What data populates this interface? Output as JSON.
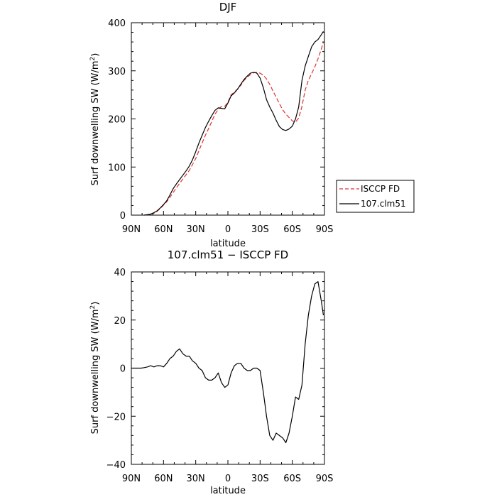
{
  "chart_data": [
    {
      "type": "line",
      "title": "DJF",
      "xlabel": "latitude",
      "ylabel": "Surf downwelling SW (W/m²)",
      "ylabel_parts": {
        "pre": "Surf downwelling SW (W/m",
        "sup": "2",
        "post": ")"
      },
      "xlim": [
        90,
        -90
      ],
      "ylim": [
        0,
        400
      ],
      "x_tick_values": [
        90,
        60,
        30,
        0,
        -30,
        -60,
        -90
      ],
      "x_tick_labels": [
        "90N",
        "60N",
        "30N",
        "0",
        "30S",
        "60S",
        "90S"
      ],
      "y_tick_values": [
        0,
        100,
        200,
        300,
        400
      ],
      "y_tick_labels": [
        "0",
        "100",
        "200",
        "300",
        "400"
      ],
      "legend_position": "outside-right",
      "series": [
        {
          "name": "ISCCP FD",
          "color": "#e03030",
          "dash": "dashed",
          "x": [
            78,
            75,
            72,
            69,
            66,
            63,
            60,
            57,
            54,
            51,
            48,
            45,
            42,
            39,
            36,
            33,
            30,
            27,
            24,
            21,
            18,
            15,
            12,
            9,
            6,
            3,
            0,
            -3,
            -6,
            -9,
            -12,
            -15,
            -18,
            -21,
            -24,
            -27,
            -30,
            -33,
            -36,
            -39,
            -42,
            -45,
            -48,
            -51,
            -54,
            -57,
            -60,
            -63,
            -66,
            -69,
            -72,
            -75,
            -78,
            -81,
            -84,
            -87,
            -89
          ],
          "y": [
            0,
            1,
            2,
            4,
            8,
            14,
            21,
            28,
            37,
            47,
            57,
            66,
            75,
            84,
            93,
            105,
            118,
            134,
            150,
            166,
            180,
            195,
            210,
            220,
            226,
            226,
            235,
            250,
            256,
            262,
            270,
            280,
            287,
            292,
            296,
            297,
            295,
            291,
            283,
            272,
            258,
            245,
            232,
            219,
            210,
            203,
            196,
            193,
            202,
            226,
            260,
            280,
            294,
            308,
            325,
            345,
            360
          ]
        },
        {
          "name": "107.clm51",
          "color": "#000000",
          "dash": "solid",
          "x": [
            78,
            75,
            72,
            69,
            66,
            63,
            60,
            57,
            54,
            51,
            48,
            45,
            42,
            39,
            36,
            33,
            30,
            27,
            24,
            21,
            18,
            15,
            12,
            9,
            6,
            3,
            0,
            -3,
            -6,
            -9,
            -12,
            -15,
            -18,
            -21,
            -24,
            -27,
            -30,
            -33,
            -36,
            -39,
            -42,
            -45,
            -48,
            -51,
            -54,
            -57,
            -60,
            -63,
            -66,
            -69,
            -72,
            -75,
            -78,
            -81,
            -84,
            -87,
            -89
          ],
          "y": [
            0,
            1,
            2,
            5,
            9,
            15,
            22,
            30,
            42,
            55,
            65,
            74,
            83,
            92,
            102,
            115,
            132,
            150,
            166,
            182,
            195,
            207,
            218,
            223,
            222,
            221,
            233,
            248,
            254,
            262,
            272,
            282,
            289,
            295,
            297,
            295,
            285,
            265,
            240,
            225,
            212,
            197,
            184,
            178,
            176,
            179,
            185,
            200,
            225,
            280,
            310,
            330,
            350,
            360,
            365,
            375,
            382
          ]
        }
      ]
    },
    {
      "type": "line",
      "title": "107.clm51 − ISCCP FD",
      "xlabel": "latitude",
      "ylabel": "Surf downwelling SW (W/m²)",
      "ylabel_parts": {
        "pre": "Surf downwelling SW (W/m",
        "sup": "2",
        "post": ")"
      },
      "xlim": [
        90,
        -90
      ],
      "ylim": [
        -40,
        40
      ],
      "x_tick_values": [
        90,
        60,
        30,
        0,
        -30,
        -60,
        -90
      ],
      "x_tick_labels": [
        "90N",
        "60N",
        "30N",
        "0",
        "30S",
        "60S",
        "90S"
      ],
      "y_tick_values": [
        -40,
        -20,
        0,
        20,
        40
      ],
      "y_tick_labels": [
        "−40",
        "−20",
        "0",
        "20",
        "40"
      ],
      "series": [
        {
          "name": "",
          "color": "#000000",
          "dash": "solid",
          "x": [
            90,
            87,
            84,
            81,
            78,
            75,
            72,
            69,
            66,
            63,
            60,
            57,
            54,
            51,
            48,
            45,
            42,
            39,
            36,
            33,
            30,
            27,
            24,
            21,
            18,
            15,
            12,
            9,
            6,
            3,
            0,
            -3,
            -6,
            -9,
            -12,
            -15,
            -18,
            -21,
            -24,
            -27,
            -30,
            -33,
            -36,
            -39,
            -42,
            -45,
            -48,
            -51,
            -54,
            -57,
            -60,
            -63,
            -66,
            -69,
            -72,
            -75,
            -78,
            -81,
            -84,
            -87,
            -89
          ],
          "y": [
            0,
            0,
            0,
            0,
            0.2,
            0.5,
            1,
            0.5,
            1,
            1,
            0.5,
            2,
            4,
            5,
            7,
            8,
            6,
            5,
            5,
            3,
            2,
            0,
            -1,
            -4,
            -5,
            -5,
            -4,
            -2,
            -6,
            -8,
            -7,
            -2,
            1,
            2,
            2,
            0,
            -1,
            -1,
            0,
            0,
            -1,
            -10,
            -20,
            -28,
            -30,
            -27,
            -28,
            -29,
            -31,
            -27,
            -20,
            -12,
            -13,
            -7,
            10,
            22,
            30,
            35,
            36,
            28,
            22
          ]
        }
      ]
    }
  ]
}
